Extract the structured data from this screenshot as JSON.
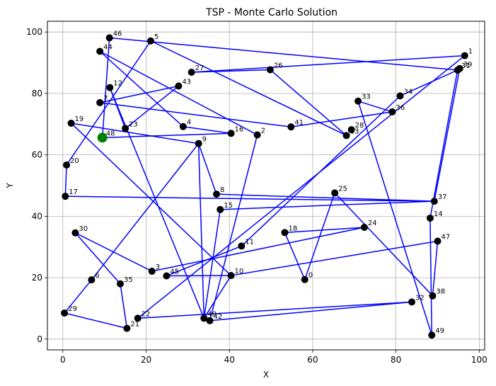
{
  "chart_data": {
    "type": "line",
    "title": "TSP - Monte Carlo Solution",
    "xlabel": "X",
    "ylabel": "Y",
    "xlim": [
      -3.7,
      101.3
    ],
    "ylim": [
      -3.5,
      103.5
    ],
    "x_ticks": [
      0,
      20,
      40,
      60,
      80,
      100
    ],
    "y_ticks": [
      0,
      20,
      40,
      60,
      80,
      100
    ],
    "grid": true,
    "route_color": "#0000ff",
    "point_color": "#000000",
    "start_color": "#008000",
    "start_city": 48,
    "cities": [
      {
        "id": 0,
        "label": "0",
        "x": 58.1,
        "y": 19.4
      },
      {
        "id": 1,
        "label": "1",
        "x": 96.5,
        "y": 92.3
      },
      {
        "id": 2,
        "label": "2",
        "x": 46.7,
        "y": 66.5
      },
      {
        "id": 3,
        "label": "3",
        "x": 21.4,
        "y": 22.1
      },
      {
        "id": 4,
        "label": "4",
        "x": 28.9,
        "y": 69.2
      },
      {
        "id": 5,
        "label": "5",
        "x": 21.1,
        "y": 97.1
      },
      {
        "id": 6,
        "label": "6",
        "x": 6.9,
        "y": 19.3
      },
      {
        "id": 7,
        "label": "7",
        "x": 8.9,
        "y": 77.0
      },
      {
        "id": 8,
        "label": "8",
        "x": 36.9,
        "y": 47.2
      },
      {
        "id": 9,
        "label": "9",
        "x": 32.6,
        "y": 63.7
      },
      {
        "id": 10,
        "label": "10",
        "x": 40.4,
        "y": 20.7
      },
      {
        "id": 11,
        "label": "11",
        "x": 42.9,
        "y": 30.3
      },
      {
        "id": 12,
        "label": "12",
        "x": 11.3,
        "y": 81.9
      },
      {
        "id": 13,
        "label": "13",
        "x": 68.1,
        "y": 66.3
      },
      {
        "id": 14,
        "label": "14",
        "x": 88.2,
        "y": 39.4
      },
      {
        "id": 15,
        "label": "15",
        "x": 37.8,
        "y": 42.2
      },
      {
        "id": 16,
        "label": "16",
        "x": 40.4,
        "y": 67.0
      },
      {
        "id": 17,
        "label": "17",
        "x": 0.6,
        "y": 46.5
      },
      {
        "id": 18,
        "label": "18",
        "x": 53.3,
        "y": 34.7
      },
      {
        "id": 19,
        "label": "19",
        "x": 2.0,
        "y": 70.3
      },
      {
        "id": 20,
        "label": "20",
        "x": 0.9,
        "y": 56.7
      },
      {
        "id": 21,
        "label": "21",
        "x": 15.4,
        "y": 3.5
      },
      {
        "id": 22,
        "label": "22",
        "x": 18.0,
        "y": 6.8
      },
      {
        "id": 23,
        "label": "23",
        "x": 15.0,
        "y": 68.6
      },
      {
        "id": 24,
        "label": "24",
        "x": 72.4,
        "y": 36.4
      },
      {
        "id": 25,
        "label": "25",
        "x": 65.3,
        "y": 47.6
      },
      {
        "id": 26,
        "label": "26",
        "x": 49.8,
        "y": 87.7
      },
      {
        "id": 27,
        "label": "27",
        "x": 30.9,
        "y": 86.9
      },
      {
        "id": 28,
        "label": "28",
        "x": 69.3,
        "y": 68.2
      },
      {
        "id": 29,
        "label": "29",
        "x": 0.4,
        "y": 8.5
      },
      {
        "id": 30,
        "label": "30",
        "x": 3.0,
        "y": 34.6
      },
      {
        "id": 31,
        "label": "31",
        "x": 94.8,
        "y": 87.6
      },
      {
        "id": 32,
        "label": "32",
        "x": 83.8,
        "y": 12.1
      },
      {
        "id": 33,
        "label": "33",
        "x": 70.9,
        "y": 77.5
      },
      {
        "id": 34,
        "label": "34",
        "x": 81.0,
        "y": 79.2
      },
      {
        "id": 35,
        "label": "35",
        "x": 13.8,
        "y": 18.0
      },
      {
        "id": 36,
        "label": "36",
        "x": 79.1,
        "y": 74.0
      },
      {
        "id": 37,
        "label": "37",
        "x": 89.2,
        "y": 44.9
      },
      {
        "id": 38,
        "label": "38",
        "x": 88.8,
        "y": 14.1
      },
      {
        "id": 39,
        "label": "39",
        "x": 95.3,
        "y": 88.1
      },
      {
        "id": 40,
        "label": "40",
        "x": 33.9,
        "y": 6.8
      },
      {
        "id": 41,
        "label": "41",
        "x": 54.8,
        "y": 69.1
      },
      {
        "id": 42,
        "label": "42",
        "x": 35.3,
        "y": 6.0
      },
      {
        "id": 43,
        "label": "43",
        "x": 27.8,
        "y": 82.4
      },
      {
        "id": 44,
        "label": "44",
        "x": 8.9,
        "y": 93.7
      },
      {
        "id": 45,
        "label": "45",
        "x": 24.9,
        "y": 20.6
      },
      {
        "id": 46,
        "label": "46",
        "x": 11.2,
        "y": 98.1
      },
      {
        "id": 47,
        "label": "47",
        "x": 90.0,
        "y": 31.9
      },
      {
        "id": 48,
        "label": "48",
        "x": 9.5,
        "y": 65.6
      },
      {
        "id": 49,
        "label": "49",
        "x": 88.6,
        "y": 1.3
      }
    ],
    "route": [
      48,
      16,
      4,
      44,
      2,
      42,
      32,
      22,
      1,
      27,
      26,
      13,
      5,
      20,
      17,
      37,
      8,
      9,
      6,
      29,
      21,
      35,
      30,
      3,
      24,
      18,
      0,
      25,
      38,
      47,
      10,
      40,
      9,
      19,
      10,
      45,
      11,
      34,
      31,
      39,
      37,
      15,
      40,
      12,
      23,
      43,
      7,
      41,
      36,
      33,
      49,
      14,
      31,
      46,
      48
    ]
  }
}
